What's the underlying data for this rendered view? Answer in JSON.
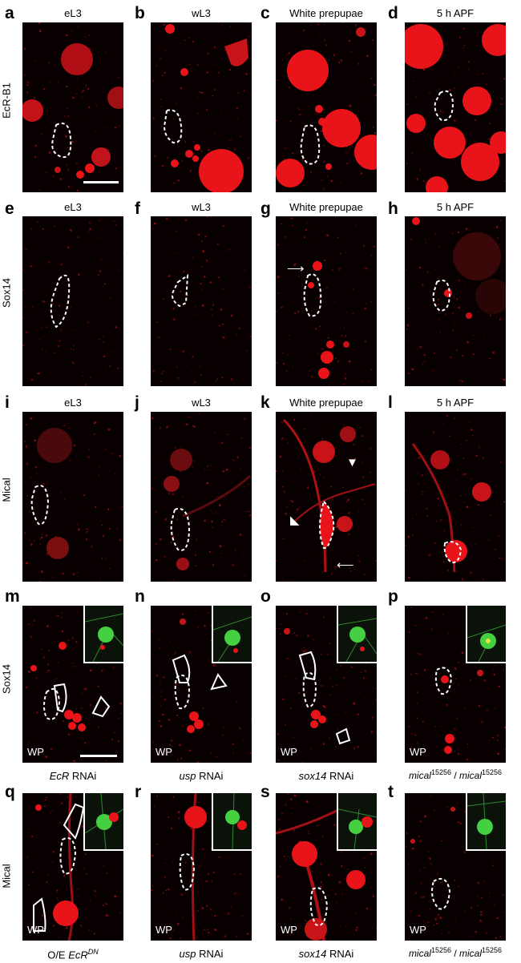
{
  "columns": [
    "eL3",
    "wL3",
    "White prepupae",
    "5 h APF"
  ],
  "row_labels": [
    "EcR-B1",
    "Sox14",
    "Mical",
    "Sox14",
    "Mical"
  ],
  "panel_letters": [
    "a",
    "b",
    "c",
    "d",
    "e",
    "f",
    "g",
    "h",
    "i",
    "j",
    "k",
    "l",
    "m",
    "n",
    "o",
    "p",
    "q",
    "r",
    "s",
    "t"
  ],
  "wp_label": "WP",
  "row4_captions": [
    {
      "gene": "EcR",
      "rest": " RNAi",
      "sup": ""
    },
    {
      "gene": "usp",
      "rest": " RNAi",
      "sup": ""
    },
    {
      "gene": "sox14",
      "rest": " RNAi",
      "sup": ""
    },
    {
      "gene": "mical",
      "rest": "",
      "sup": "15256"
    }
  ],
  "row5_captions": [
    {
      "prefix": "O/E ",
      "gene": "EcR",
      "sup": "DN"
    },
    {
      "gene": "usp",
      "rest": " RNAi"
    },
    {
      "gene": "sox14",
      "rest": " RNAi"
    },
    {
      "gene": "mical",
      "sup": "15256"
    }
  ],
  "colors": {
    "signal": "#e8141a",
    "inset_green": "#44d040",
    "outline": "#ffffff"
  }
}
